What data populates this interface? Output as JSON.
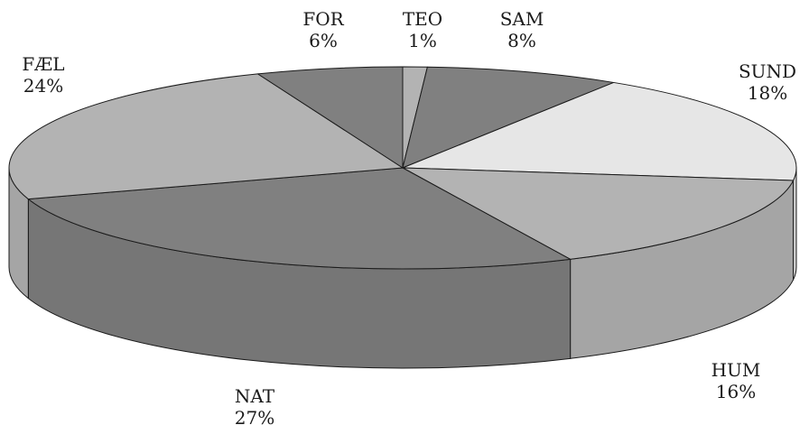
{
  "chart_data": {
    "type": "pie",
    "style": "3d-exploded-tilted",
    "title": "",
    "slices": [
      {
        "label": "TEO",
        "value": 1,
        "value_label": "1%",
        "color": "#b3b3b3"
      },
      {
        "label": "SAM",
        "value": 8,
        "value_label": "8%",
        "color": "#808080"
      },
      {
        "label": "SUND",
        "value": 18,
        "value_label": "18%",
        "color": "#e6e6e6"
      },
      {
        "label": "HUM",
        "value": 16,
        "value_label": "16%",
        "color": "#b3b3b3"
      },
      {
        "label": "NAT",
        "value": 27,
        "value_label": "27%",
        "color": "#808080"
      },
      {
        "label": "FÆL",
        "value": 24,
        "value_label": "24%",
        "color": "#b3b3b3"
      },
      {
        "label": "FOR",
        "value": 6,
        "value_label": "6%",
        "color": "#808080"
      }
    ],
    "legend": "none"
  }
}
